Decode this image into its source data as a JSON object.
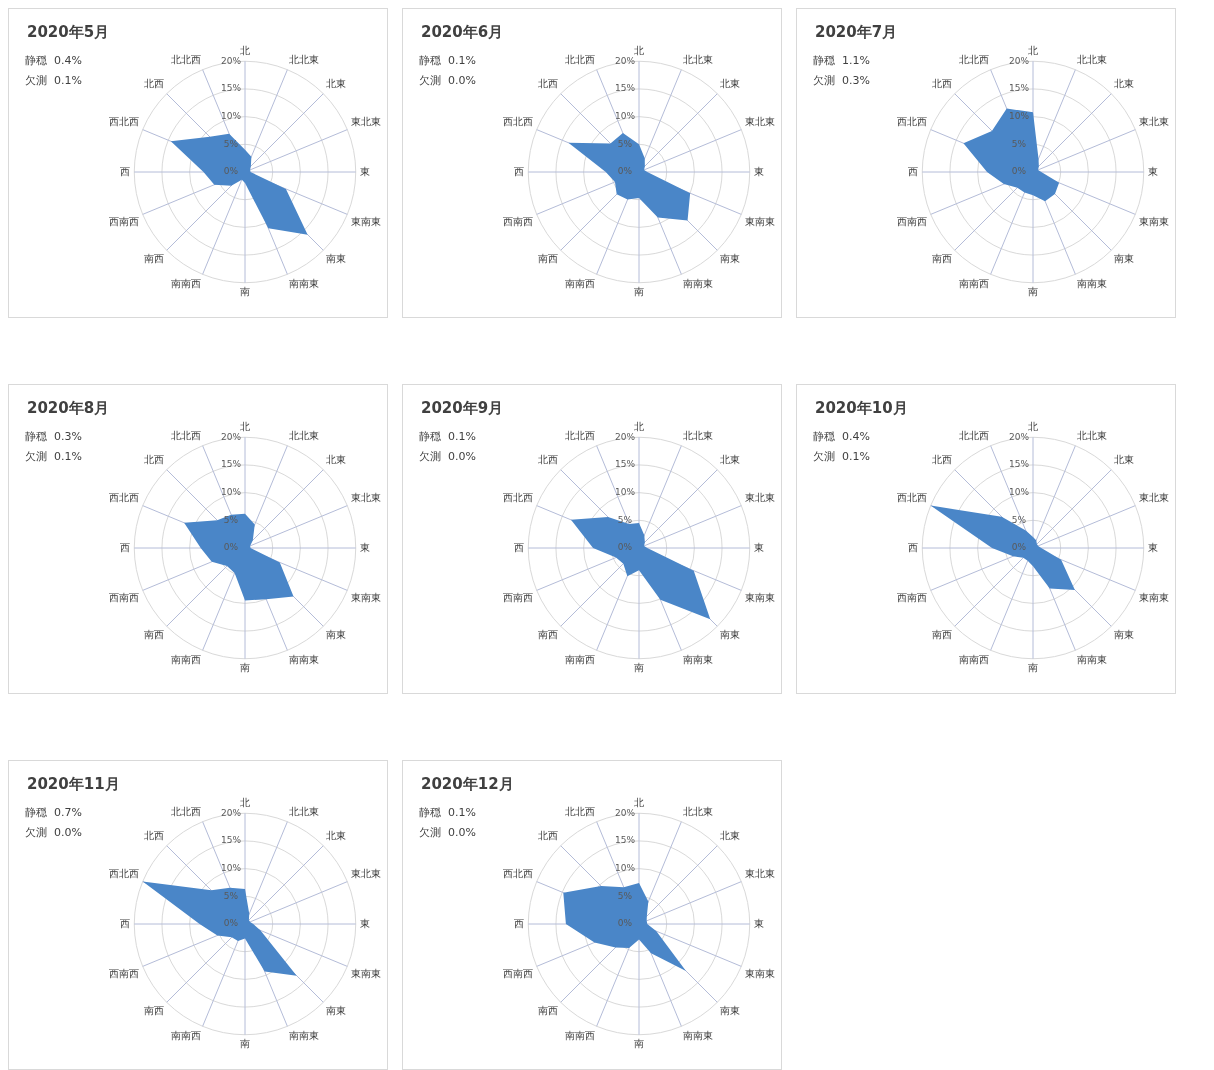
{
  "chart_data": [
    {
      "type": "radar",
      "title": "2020年5月",
      "annotations": [
        "静穏  0.4%",
        "欠測  0.1%"
      ],
      "categories": [
        "北",
        "北北東",
        "北東",
        "東北東",
        "東",
        "東南東",
        "南東",
        "南南東",
        "南",
        "南南西",
        "南西",
        "西南西",
        "西",
        "西北西",
        "北西",
        "北北西"
      ],
      "series": [
        {
          "color": "#4a86c8",
          "values": [
            4,
            3,
            1.5,
            1,
            1,
            8,
            16,
            11,
            2,
            1.5,
            3.5,
            6,
            7.5,
            14.5,
            9,
            7.5
          ]
        }
      ],
      "ylim": [
        0,
        20
      ],
      "yticks": [
        {
          "value": 0,
          "label": "0%"
        },
        {
          "value": 5,
          "label": "5%"
        },
        {
          "value": 10,
          "label": "10%"
        },
        {
          "value": 15,
          "label": "15%"
        },
        {
          "value": 20,
          "label": "20%"
        }
      ],
      "grid": true
    },
    {
      "type": "radar",
      "title": "2020年6月",
      "annotations": [
        "静穏  0.1%",
        "欠測  0.0%"
      ],
      "categories": [
        "北",
        "北北東",
        "北東",
        "東北東",
        "東",
        "東南東",
        "南東",
        "南南東",
        "南",
        "南南西",
        "南西",
        "西南西",
        "西",
        "西北西",
        "北西",
        "北北西"
      ],
      "series": [
        {
          "color": "#4a86c8",
          "values": [
            5,
            2.7,
            1.5,
            1,
            1.5,
            10,
            12.4,
            8.9,
            4.7,
            5.4,
            5.7,
            4.7,
            6,
            13.8,
            7.3,
            7.6
          ]
        }
      ],
      "ylim": [
        0,
        20
      ],
      "yticks": [
        {
          "value": 0,
          "label": "0%"
        },
        {
          "value": 5,
          "label": "5%"
        },
        {
          "value": 10,
          "label": "10%"
        },
        {
          "value": 15,
          "label": "15%"
        },
        {
          "value": 20,
          "label": "20%"
        }
      ],
      "grid": true
    },
    {
      "type": "radar",
      "title": "2020年7月",
      "annotations": [
        "静穏  1.1%",
        "欠測  0.3%"
      ],
      "categories": [
        "北",
        "北北東",
        "北東",
        "東北東",
        "東",
        "東南東",
        "南東",
        "南南東",
        "南",
        "南南西",
        "南西",
        "西南西",
        "西",
        "西北西",
        "北西",
        "北北西"
      ],
      "series": [
        {
          "color": "#4a86c8",
          "values": [
            10.8,
            2.6,
            1.5,
            1,
            1.5,
            5.1,
            5.6,
            5.7,
            4.2,
            4,
            4,
            5.7,
            8.3,
            13.6,
            10.5,
            12.4
          ]
        }
      ],
      "ylim": [
        0,
        20
      ],
      "yticks": [
        {
          "value": 0,
          "label": "0%"
        },
        {
          "value": 5,
          "label": "5%"
        },
        {
          "value": 10,
          "label": "10%"
        },
        {
          "value": 15,
          "label": "15%"
        },
        {
          "value": 20,
          "label": "20%"
        }
      ],
      "grid": true
    },
    {
      "type": "radar",
      "title": "2020年8月",
      "annotations": [
        "静穏  0.3%",
        "欠測  0.1%"
      ],
      "categories": [
        "北",
        "北北東",
        "北東",
        "東北東",
        "東",
        "東南東",
        "南東",
        "南南東",
        "南",
        "南南西",
        "南西",
        "西南西",
        "西",
        "西北西",
        "北西",
        "北北西"
      ],
      "series": [
        {
          "color": "#4a86c8",
          "values": [
            6.2,
            4.6,
            2,
            1,
            1,
            6.8,
            12.4,
            10,
            9.5,
            4.9,
            4.6,
            6.5,
            8,
            11.9,
            7.1,
            6.5
          ]
        }
      ],
      "ylim": [
        0,
        20
      ],
      "yticks": [
        {
          "value": 0,
          "label": "0%"
        },
        {
          "value": 5,
          "label": "5%"
        },
        {
          "value": 10,
          "label": "10%"
        },
        {
          "value": 15,
          "label": "15%"
        },
        {
          "value": 20,
          "label": "20%"
        }
      ],
      "grid": true
    },
    {
      "type": "radar",
      "title": "2020年9月",
      "annotations": [
        "静穏  0.1%",
        "欠測  0.0%"
      ],
      "categories": [
        "北",
        "北北東",
        "北東",
        "東北東",
        "東",
        "東南東",
        "南東",
        "南南東",
        "南",
        "南南西",
        "南西",
        "西南西",
        "西",
        "西北西",
        "北西",
        "北北西"
      ],
      "series": [
        {
          "color": "#4a86c8",
          "values": [
            4.5,
            2.5,
            1.5,
            1,
            1.5,
            10.7,
            18.2,
            10.1,
            4,
            5.5,
            4,
            4.5,
            8.3,
            13.3,
            7.9,
            4.7
          ]
        }
      ],
      "ylim": [
        0,
        20
      ],
      "yticks": [
        {
          "value": 0,
          "label": "0%"
        },
        {
          "value": 5,
          "label": "5%"
        },
        {
          "value": 10,
          "label": "10%"
        },
        {
          "value": 15,
          "label": "15%"
        },
        {
          "value": 20,
          "label": "20%"
        }
      ],
      "grid": true
    },
    {
      "type": "radar",
      "title": "2020年10月",
      "annotations": [
        "静穏  0.4%",
        "欠測  0.1%"
      ],
      "categories": [
        "北",
        "北北東",
        "北東",
        "東北東",
        "東",
        "東南東",
        "南東",
        "南南東",
        "南",
        "南南西",
        "南西",
        "西南西",
        "西",
        "西北西",
        "北西",
        "北北西"
      ],
      "series": [
        {
          "color": "#4a86c8",
          "values": [
            2,
            1.5,
            1,
            1,
            1.5,
            5.5,
            10.7,
            7.9,
            3.3,
            2.5,
            2.5,
            3.9,
            7.4,
            20,
            8,
            3.4
          ]
        }
      ],
      "ylim": [
        0,
        20
      ],
      "yticks": [
        {
          "value": 0,
          "label": "0%"
        },
        {
          "value": 5,
          "label": "5%"
        },
        {
          "value": 10,
          "label": "10%"
        },
        {
          "value": 15,
          "label": "15%"
        },
        {
          "value": 20,
          "label": "20%"
        }
      ],
      "grid": true
    },
    {
      "type": "radar",
      "title": "2020年11月",
      "annotations": [
        "静穏  0.7%",
        "欠測  0.0%"
      ],
      "categories": [
        "北",
        "北北東",
        "北東",
        "東北東",
        "東",
        "東南東",
        "南東",
        "南南東",
        "南",
        "南南西",
        "南西",
        "西南西",
        "西",
        "西北西",
        "北西",
        "北北西"
      ],
      "series": [
        {
          "color": "#4a86c8",
          "values": [
            6.3,
            2,
            1,
            1,
            1.5,
            3,
            13.2,
            9.3,
            2.6,
            3.3,
            3.4,
            5.4,
            8.2,
            20,
            8.6,
            7.1
          ]
        }
      ],
      "ylim": [
        0,
        20
      ],
      "yticks": [
        {
          "value": 0,
          "label": "0%"
        },
        {
          "value": 5,
          "label": "5%"
        },
        {
          "value": 10,
          "label": "10%"
        },
        {
          "value": 15,
          "label": "15%"
        },
        {
          "value": 20,
          "label": "20%"
        }
      ],
      "grid": true
    },
    {
      "type": "radar",
      "title": "2020年12月",
      "annotations": [
        "静穏  0.1%",
        "欠測  0.0%"
      ],
      "categories": [
        "北",
        "北北東",
        "北東",
        "東北東",
        "東",
        "東南東",
        "南東",
        "南南東",
        "南",
        "南南西",
        "南西",
        "西南西",
        "西",
        "西北西",
        "北西",
        "北北西"
      ],
      "series": [
        {
          "color": "#4a86c8",
          "values": [
            7.4,
            4.4,
            2,
            1.5,
            1.5,
            3.4,
            12,
            5.7,
            2.8,
            4.7,
            6,
            8.7,
            13.2,
            14.8,
            9.7,
            7.2
          ]
        }
      ],
      "ylim": [
        0,
        20
      ],
      "yticks": [
        {
          "value": 0,
          "label": "0%"
        },
        {
          "value": 5,
          "label": "5%"
        },
        {
          "value": 10,
          "label": "10%"
        },
        {
          "value": 15,
          "label": "15%"
        },
        {
          "value": 20,
          "label": "20%"
        }
      ],
      "grid": true
    }
  ]
}
